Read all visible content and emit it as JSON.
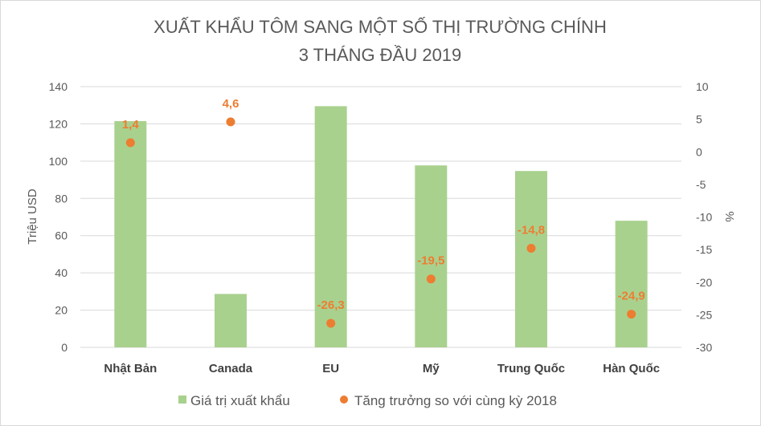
{
  "chart_data": {
    "type": "bar",
    "title": "XUẤT KHẨU TÔM SANG MỘT SỐ THỊ TRƯỜNG CHÍNH",
    "subtitle": "3 THÁNG ĐẦU 2019",
    "categories": [
      "Nhật Bản",
      "Canada",
      "EU",
      "Mỹ",
      "Trung Quốc",
      "Hàn Quốc"
    ],
    "series": [
      {
        "name": "Giá trị xuất khẩu",
        "type": "bar",
        "axis": "left",
        "color": "#a9d18e",
        "values": [
          121.5,
          28.7,
          129.5,
          97.7,
          94.7,
          68
        ]
      },
      {
        "name": "Tăng trưởng so với cùng kỳ 2018",
        "type": "scatter",
        "axis": "right",
        "color": "#ed7d31",
        "values": [
          1.4,
          4.6,
          -26.3,
          -19.5,
          -14.8,
          -24.9
        ],
        "labels": [
          "1,4",
          "4,6",
          "-26,3",
          "-19,5",
          "-14,8",
          "-24,9"
        ]
      }
    ],
    "ylabel": "Triệu USD",
    "ylim": [
      0,
      140
    ],
    "yticks": [
      "0",
      "20",
      "40",
      "60",
      "80",
      "100",
      "120",
      "140"
    ],
    "y2label": "%",
    "y2lim": [
      -30,
      10
    ],
    "y2ticks": [
      "-30",
      "-25",
      "-20",
      "-15",
      "-10",
      "-5",
      "0",
      "5",
      "10"
    ],
    "grid": true,
    "legend_position": "bottom"
  }
}
